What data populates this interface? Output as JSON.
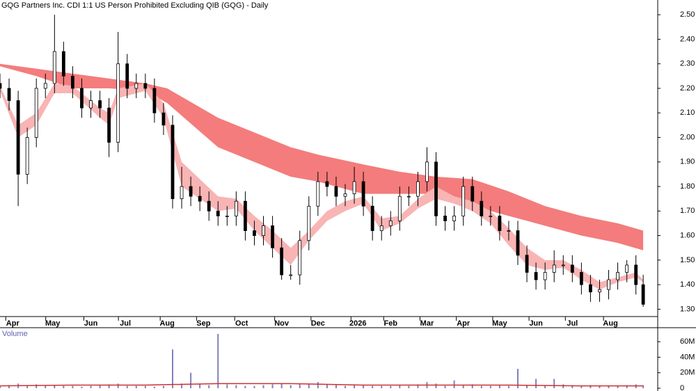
{
  "chart_data": {
    "type": "candlestick",
    "title": "GQG Partners Inc. CDI 1:1 US Person Prohibited Excluding QIB (GQG) - Daily",
    "xlim": [
      0,
      362
    ],
    "xticks": [
      {
        "value": 7,
        "label": "Apr"
      },
      {
        "value": 29,
        "label": "May"
      },
      {
        "value": 50,
        "label": "Jun"
      },
      {
        "value": 69,
        "label": "Jul"
      },
      {
        "value": 92,
        "label": "Aug"
      },
      {
        "value": 112,
        "label": "Sep"
      },
      {
        "value": 133,
        "label": "Oct"
      },
      {
        "value": 155,
        "label": "Nov"
      },
      {
        "value": 175,
        "label": "Dec"
      },
      {
        "value": 197,
        "label": "2026"
      },
      {
        "value": 215,
        "label": "Feb"
      },
      {
        "value": 235,
        "label": "Mar"
      },
      {
        "value": 255,
        "label": "Apr"
      },
      {
        "value": 275,
        "label": "May"
      },
      {
        "value": 295,
        "label": "Jun"
      },
      {
        "value": 315,
        "label": "Jul"
      },
      {
        "value": 336,
        "label": "Aug"
      }
    ],
    "ylim": [
      1.27,
      2.56
    ],
    "yticks": [
      {
        "value": 1.3,
        "label": "1.30"
      },
      {
        "value": 1.4,
        "label": "1.40"
      },
      {
        "value": 1.5,
        "label": "1.50"
      },
      {
        "value": 1.6,
        "label": "1.60"
      },
      {
        "value": 1.7,
        "label": "1.70"
      },
      {
        "value": 1.8,
        "label": "1.80"
      },
      {
        "value": 1.9,
        "label": "1.90"
      },
      {
        "value": 2.0,
        "label": "2.00"
      },
      {
        "value": 2.1,
        "label": "2.10"
      },
      {
        "value": 2.2,
        "label": "2.20"
      },
      {
        "value": 2.3,
        "label": "2.30"
      },
      {
        "value": 2.4,
        "label": "2.40"
      },
      {
        "value": 2.5,
        "label": "2.50"
      }
    ],
    "x": [
      0,
      5,
      10,
      15,
      20,
      25,
      30,
      35,
      40,
      45,
      50,
      55,
      60,
      65,
      70,
      75,
      80,
      85,
      90,
      95,
      100,
      105,
      110,
      115,
      120,
      125,
      130,
      135,
      140,
      145,
      150,
      155,
      160,
      165,
      170,
      175,
      180,
      185,
      190,
      195,
      200,
      205,
      210,
      215,
      220,
      225,
      230,
      235,
      240,
      245,
      250,
      255,
      260,
      265,
      270,
      275,
      280,
      285,
      290,
      295,
      300,
      305,
      310,
      315,
      320,
      325,
      330,
      335,
      340,
      345,
      350,
      354
    ],
    "open": [
      2.22,
      2.2,
      2.15,
      1.85,
      2.0,
      2.2,
      2.22,
      2.35,
      2.25,
      2.2,
      2.12,
      2.15,
      2.12,
      1.98,
      2.3,
      2.2,
      2.22,
      2.2,
      2.1,
      2.05,
      1.75,
      1.8,
      1.76,
      1.74,
      1.7,
      1.68,
      1.68,
      1.74,
      1.62,
      1.6,
      1.64,
      1.55,
      1.44,
      1.44,
      1.58,
      1.72,
      1.82,
      1.8,
      1.76,
      1.77,
      1.82,
      1.72,
      1.62,
      1.64,
      1.66,
      1.76,
      1.76,
      1.82,
      1.9,
      1.68,
      1.66,
      1.68,
      1.8,
      1.74,
      1.68,
      1.68,
      1.62,
      1.62,
      1.52,
      1.45,
      1.42,
      1.45,
      1.48,
      1.48,
      1.45,
      1.4,
      1.37,
      1.38,
      1.42,
      1.45,
      1.48,
      1.4
    ],
    "high": [
      2.26,
      2.24,
      2.19,
      2.04,
      2.24,
      2.26,
      2.5,
      2.39,
      2.29,
      2.24,
      2.19,
      2.19,
      2.16,
      2.43,
      2.34,
      2.26,
      2.26,
      2.24,
      2.14,
      2.09,
      1.88,
      1.84,
      1.8,
      1.78,
      1.74,
      1.72,
      1.78,
      1.78,
      1.66,
      1.68,
      1.68,
      1.59,
      1.48,
      1.62,
      1.76,
      1.86,
      1.86,
      1.84,
      1.81,
      1.88,
      1.86,
      1.76,
      1.68,
      1.7,
      1.8,
      1.8,
      1.86,
      1.96,
      1.94,
      1.72,
      1.72,
      1.84,
      1.84,
      1.78,
      1.72,
      1.72,
      1.66,
      1.66,
      1.56,
      1.49,
      1.49,
      1.54,
      1.52,
      1.52,
      1.49,
      1.44,
      1.42,
      1.46,
      1.49,
      1.5,
      1.52,
      1.44
    ],
    "low": [
      2.16,
      2.11,
      1.72,
      1.81,
      1.96,
      2.16,
      2.18,
      2.21,
      2.16,
      2.08,
      2.08,
      2.08,
      1.92,
      1.94,
      2.16,
      2.16,
      2.16,
      2.06,
      2.01,
      1.71,
      1.71,
      1.72,
      1.7,
      1.66,
      1.64,
      1.64,
      1.64,
      1.58,
      1.56,
      1.56,
      1.51,
      1.42,
      1.42,
      1.4,
      1.54,
      1.68,
      1.76,
      1.72,
      1.72,
      1.73,
      1.68,
      1.58,
      1.58,
      1.6,
      1.62,
      1.72,
      1.72,
      1.78,
      1.64,
      1.62,
      1.62,
      1.64,
      1.7,
      1.64,
      1.64,
      1.58,
      1.58,
      1.48,
      1.41,
      1.38,
      1.38,
      1.41,
      1.44,
      1.41,
      1.36,
      1.33,
      1.33,
      1.34,
      1.38,
      1.41,
      1.36,
      1.31
    ],
    "close": [
      2.2,
      2.15,
      1.85,
      2.0,
      2.2,
      2.22,
      2.35,
      2.25,
      2.2,
      2.12,
      2.15,
      2.12,
      1.98,
      2.3,
      2.2,
      2.22,
      2.2,
      2.1,
      2.05,
      1.75,
      1.8,
      1.76,
      1.74,
      1.7,
      1.68,
      1.68,
      1.74,
      1.62,
      1.6,
      1.64,
      1.55,
      1.44,
      1.44,
      1.58,
      1.72,
      1.82,
      1.8,
      1.76,
      1.77,
      1.82,
      1.72,
      1.62,
      1.64,
      1.66,
      1.76,
      1.76,
      1.82,
      1.9,
      1.68,
      1.66,
      1.68,
      1.8,
      1.74,
      1.68,
      1.68,
      1.62,
      1.62,
      1.52,
      1.45,
      1.42,
      1.45,
      1.48,
      1.48,
      1.45,
      1.4,
      1.37,
      1.38,
      1.42,
      1.45,
      1.48,
      1.4,
      1.32
    ],
    "short_band": {
      "color": "#f9b4b4",
      "x": [
        0,
        10,
        20,
        30,
        40,
        55,
        60,
        65,
        80,
        90,
        100,
        120,
        130,
        140,
        150,
        160,
        170,
        180,
        190,
        200,
        210,
        220,
        230,
        240,
        250,
        260,
        270,
        280,
        290,
        300,
        310,
        320,
        330,
        340,
        350,
        354
      ],
      "upper": [
        2.21,
        2.05,
        2.1,
        2.22,
        2.21,
        2.12,
        2.1,
        2.2,
        2.22,
        2.14,
        1.9,
        1.76,
        1.75,
        1.68,
        1.62,
        1.55,
        1.62,
        1.7,
        1.74,
        1.76,
        1.67,
        1.68,
        1.75,
        1.8,
        1.76,
        1.74,
        1.7,
        1.63,
        1.55,
        1.5,
        1.5,
        1.46,
        1.41,
        1.43,
        1.45,
        1.42
      ],
      "lower": [
        2.19,
        2.0,
        2.05,
        2.18,
        2.18,
        2.08,
        2.05,
        2.16,
        2.19,
        2.08,
        1.8,
        1.7,
        1.71,
        1.62,
        1.55,
        1.48,
        1.58,
        1.66,
        1.7,
        1.73,
        1.62,
        1.65,
        1.71,
        1.75,
        1.73,
        1.7,
        1.65,
        1.56,
        1.48,
        1.46,
        1.47,
        1.42,
        1.38,
        1.41,
        1.43,
        1.41
      ]
    },
    "long_band": {
      "color": "#f47c7c",
      "x": [
        0,
        20,
        40,
        60,
        80,
        92,
        120,
        160,
        175,
        200,
        220,
        240,
        260,
        280,
        300,
        320,
        340,
        354
      ],
      "upper": [
        2.3,
        2.28,
        2.26,
        2.24,
        2.22,
        2.2,
        2.08,
        1.96,
        1.93,
        1.89,
        1.86,
        1.84,
        1.83,
        1.78,
        1.72,
        1.68,
        1.65,
        1.62
      ],
      "lower": [
        2.29,
        2.25,
        2.2,
        2.2,
        2.19,
        2.14,
        1.96,
        1.84,
        1.82,
        1.77,
        1.77,
        1.77,
        1.72,
        1.68,
        1.64,
        1.6,
        1.57,
        1.54
      ]
    },
    "volume_label": "Volume",
    "volume_color": "#8080c0",
    "volume": [
      3000000,
      4000000,
      6000000,
      3000000,
      5000000,
      3000000,
      4000000,
      3000000,
      3000000,
      2000000,
      3000000,
      4000000,
      5000000,
      6000000,
      3000000,
      3000000,
      3000000,
      2000000,
      3000000,
      50000000,
      6000000,
      20000000,
      5000000,
      4000000,
      70000000,
      5000000,
      4000000,
      3000000,
      3000000,
      4000000,
      5000000,
      6000000,
      4000000,
      5000000,
      6000000,
      8000000,
      5000000,
      4000000,
      3000000,
      5000000,
      4000000,
      3000000,
      3000000,
      3000000,
      4000000,
      3000000,
      5000000,
      8000000,
      6000000,
      3000000,
      10000000,
      4000000,
      5000000,
      3000000,
      3000000,
      4000000,
      3000000,
      25000000,
      4000000,
      12000000,
      4000000,
      12000000,
      5000000,
      4000000,
      3000000,
      4000000,
      3000000,
      3000000,
      3000000,
      4000000,
      5000000,
      4000000
    ],
    "volume_ylim": [
      0,
      79000000
    ],
    "volume_yticks": [
      0,
      {
        "value": 20000000,
        "label": "20M"
      },
      {
        "value": 40000000,
        "label": "40M"
      },
      {
        "value": 60000000,
        "label": "60M"
      }
    ],
    "volume_average": {
      "color": "#d03030",
      "x": [
        0,
        40,
        80,
        120,
        160,
        200,
        240,
        280,
        320,
        354
      ],
      "values": [
        3000000,
        4000000,
        4000000,
        6000000,
        6000000,
        4000000,
        4000000,
        4000000,
        3000000,
        3000000
      ]
    }
  }
}
